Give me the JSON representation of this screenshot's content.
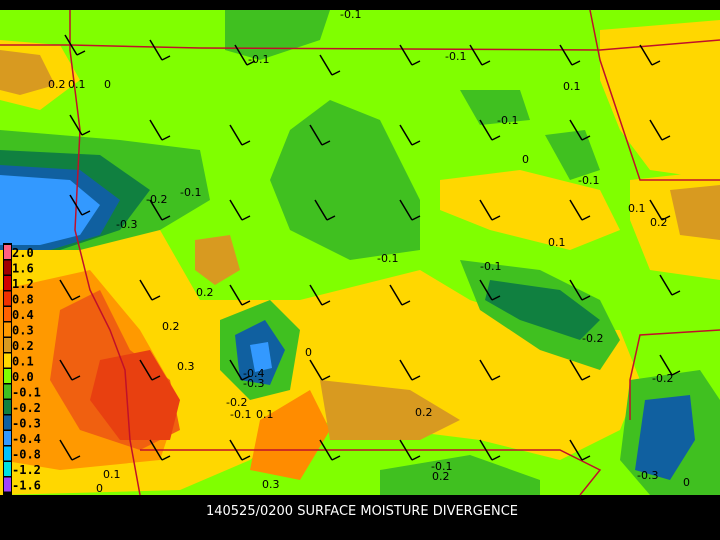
{
  "title": "140525/0200 SURFACE MOISTURE DIVERGENCE",
  "legend": [
    "2.0",
    "1.6",
    "1.2",
    "0.8",
    "0.4",
    "0.3",
    "0.2",
    "0.1",
    "0.0",
    "-0.1",
    "-0.2",
    "-0.3",
    "-0.4",
    "-0.8",
    "-1.2",
    "-1.6"
  ],
  "contour_labels": [
    "0.2",
    "0.1",
    "0",
    "-0.1",
    "-0.1",
    "0.1",
    "-0.1",
    "0",
    "-0.1",
    "0.1",
    "0.2",
    "0.1",
    "-0.2",
    "-0.3",
    "-0.1",
    "-0.1",
    "0.2",
    "0.2",
    "0.3",
    "-0.4",
    "-0.3",
    "-0.2",
    "-0.1",
    "0.1",
    "0",
    "-0.2",
    "0.2",
    "-0.2",
    "-0.3",
    "0.3",
    "0.1",
    "0",
    "-0.1",
    "0.2",
    "0",
    "-0.1",
    "-0.1"
  ]
}
